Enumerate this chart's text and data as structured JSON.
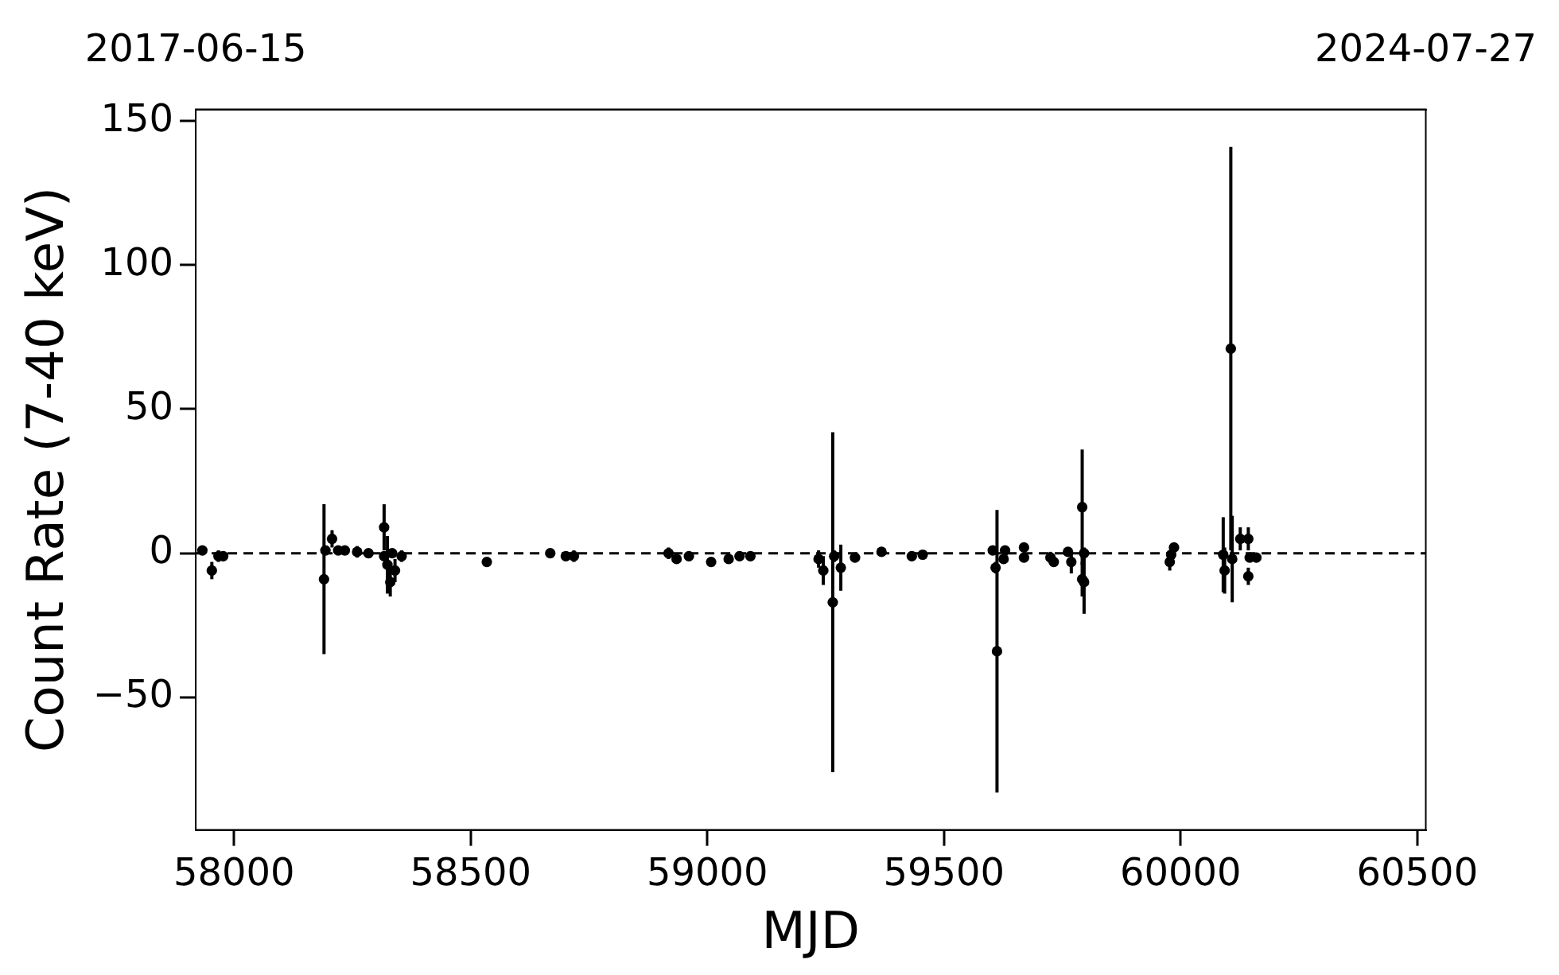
{
  "chart_data": {
    "type": "scatter",
    "xlabel": "MJD",
    "ylabel": "Count Rate (7-40 keV)",
    "xlim": [
      57919,
      60518
    ],
    "xticks": [
      58000,
      58500,
      59000,
      59500,
      60000,
      60500
    ],
    "ylim": [
      -96,
      154
    ],
    "yticks": [
      {
        "value": -50,
        "label": "−50"
      },
      0,
      50,
      100,
      150
    ],
    "x2lim": [
      "2017-06-15",
      "2024-07-27"
    ],
    "x2ticks": [
      "2017-06-15",
      "2024-07-27"
    ],
    "marker": "circle",
    "grid": false,
    "ref_lines": [
      {
        "axis": "y",
        "value": 0,
        "line_style": "dashed",
        "color": "#000000"
      }
    ],
    "series": [
      {
        "color": "#000000",
        "x": [
          57933,
          57953,
          57967,
          57977,
          58190,
          58193,
          58207,
          58220,
          58234,
          58260,
          58284,
          58317,
          58317,
          58324,
          58330,
          58334,
          58340,
          58354,
          58534,
          58668,
          58701,
          58718,
          58918,
          58935,
          58961,
          59008,
          59045,
          59068,
          59091,
          59235,
          59245,
          59265,
          59268,
          59282,
          59312,
          59368,
          59432,
          59455,
          59603,
          59609,
          59612,
          59626,
          59629,
          59669,
          59669,
          59725,
          59732,
          59762,
          59769,
          59792,
          59792,
          59796,
          59796,
          59977,
          59980,
          59986,
          60090,
          60093,
          60106,
          60109,
          60126,
          60143,
          60143,
          60146,
          60160
        ],
        "values": [
          1,
          -6,
          -1,
          -1,
          -9,
          1,
          5,
          1,
          1,
          0.5,
          0,
          -1,
          9,
          -4,
          -10,
          0,
          -6,
          -1,
          -3,
          0,
          -1,
          -1,
          0,
          -2,
          -1,
          -3,
          -2,
          -1,
          -1,
          -2,
          -6,
          -17,
          -1,
          -5,
          -1.5,
          0.5,
          -1,
          -0.5,
          1,
          -5,
          -34,
          -2,
          1,
          2,
          -1.5,
          -1.5,
          -3,
          0.5,
          -3,
          16,
          -9,
          -10,
          0,
          -3,
          -0.5,
          2,
          -0.5,
          -6,
          71,
          -2,
          5,
          5,
          -8,
          -1.5,
          -1.5
        ],
        "errors": [
          1,
          3,
          2,
          1,
          26,
          1,
          3,
          1,
          1,
          2,
          1,
          1,
          8,
          10,
          5,
          1,
          4,
          2,
          1,
          1,
          1,
          2,
          2,
          1,
          1,
          1,
          1,
          1,
          1,
          3,
          5,
          59,
          2,
          8,
          1,
          1,
          1,
          1,
          1,
          2,
          49,
          1,
          1,
          1,
          1,
          2,
          1,
          1,
          4,
          20,
          6,
          11,
          2,
          3,
          1,
          1,
          13,
          8,
          70,
          15,
          4,
          4,
          3,
          1,
          1
        ]
      }
    ]
  }
}
